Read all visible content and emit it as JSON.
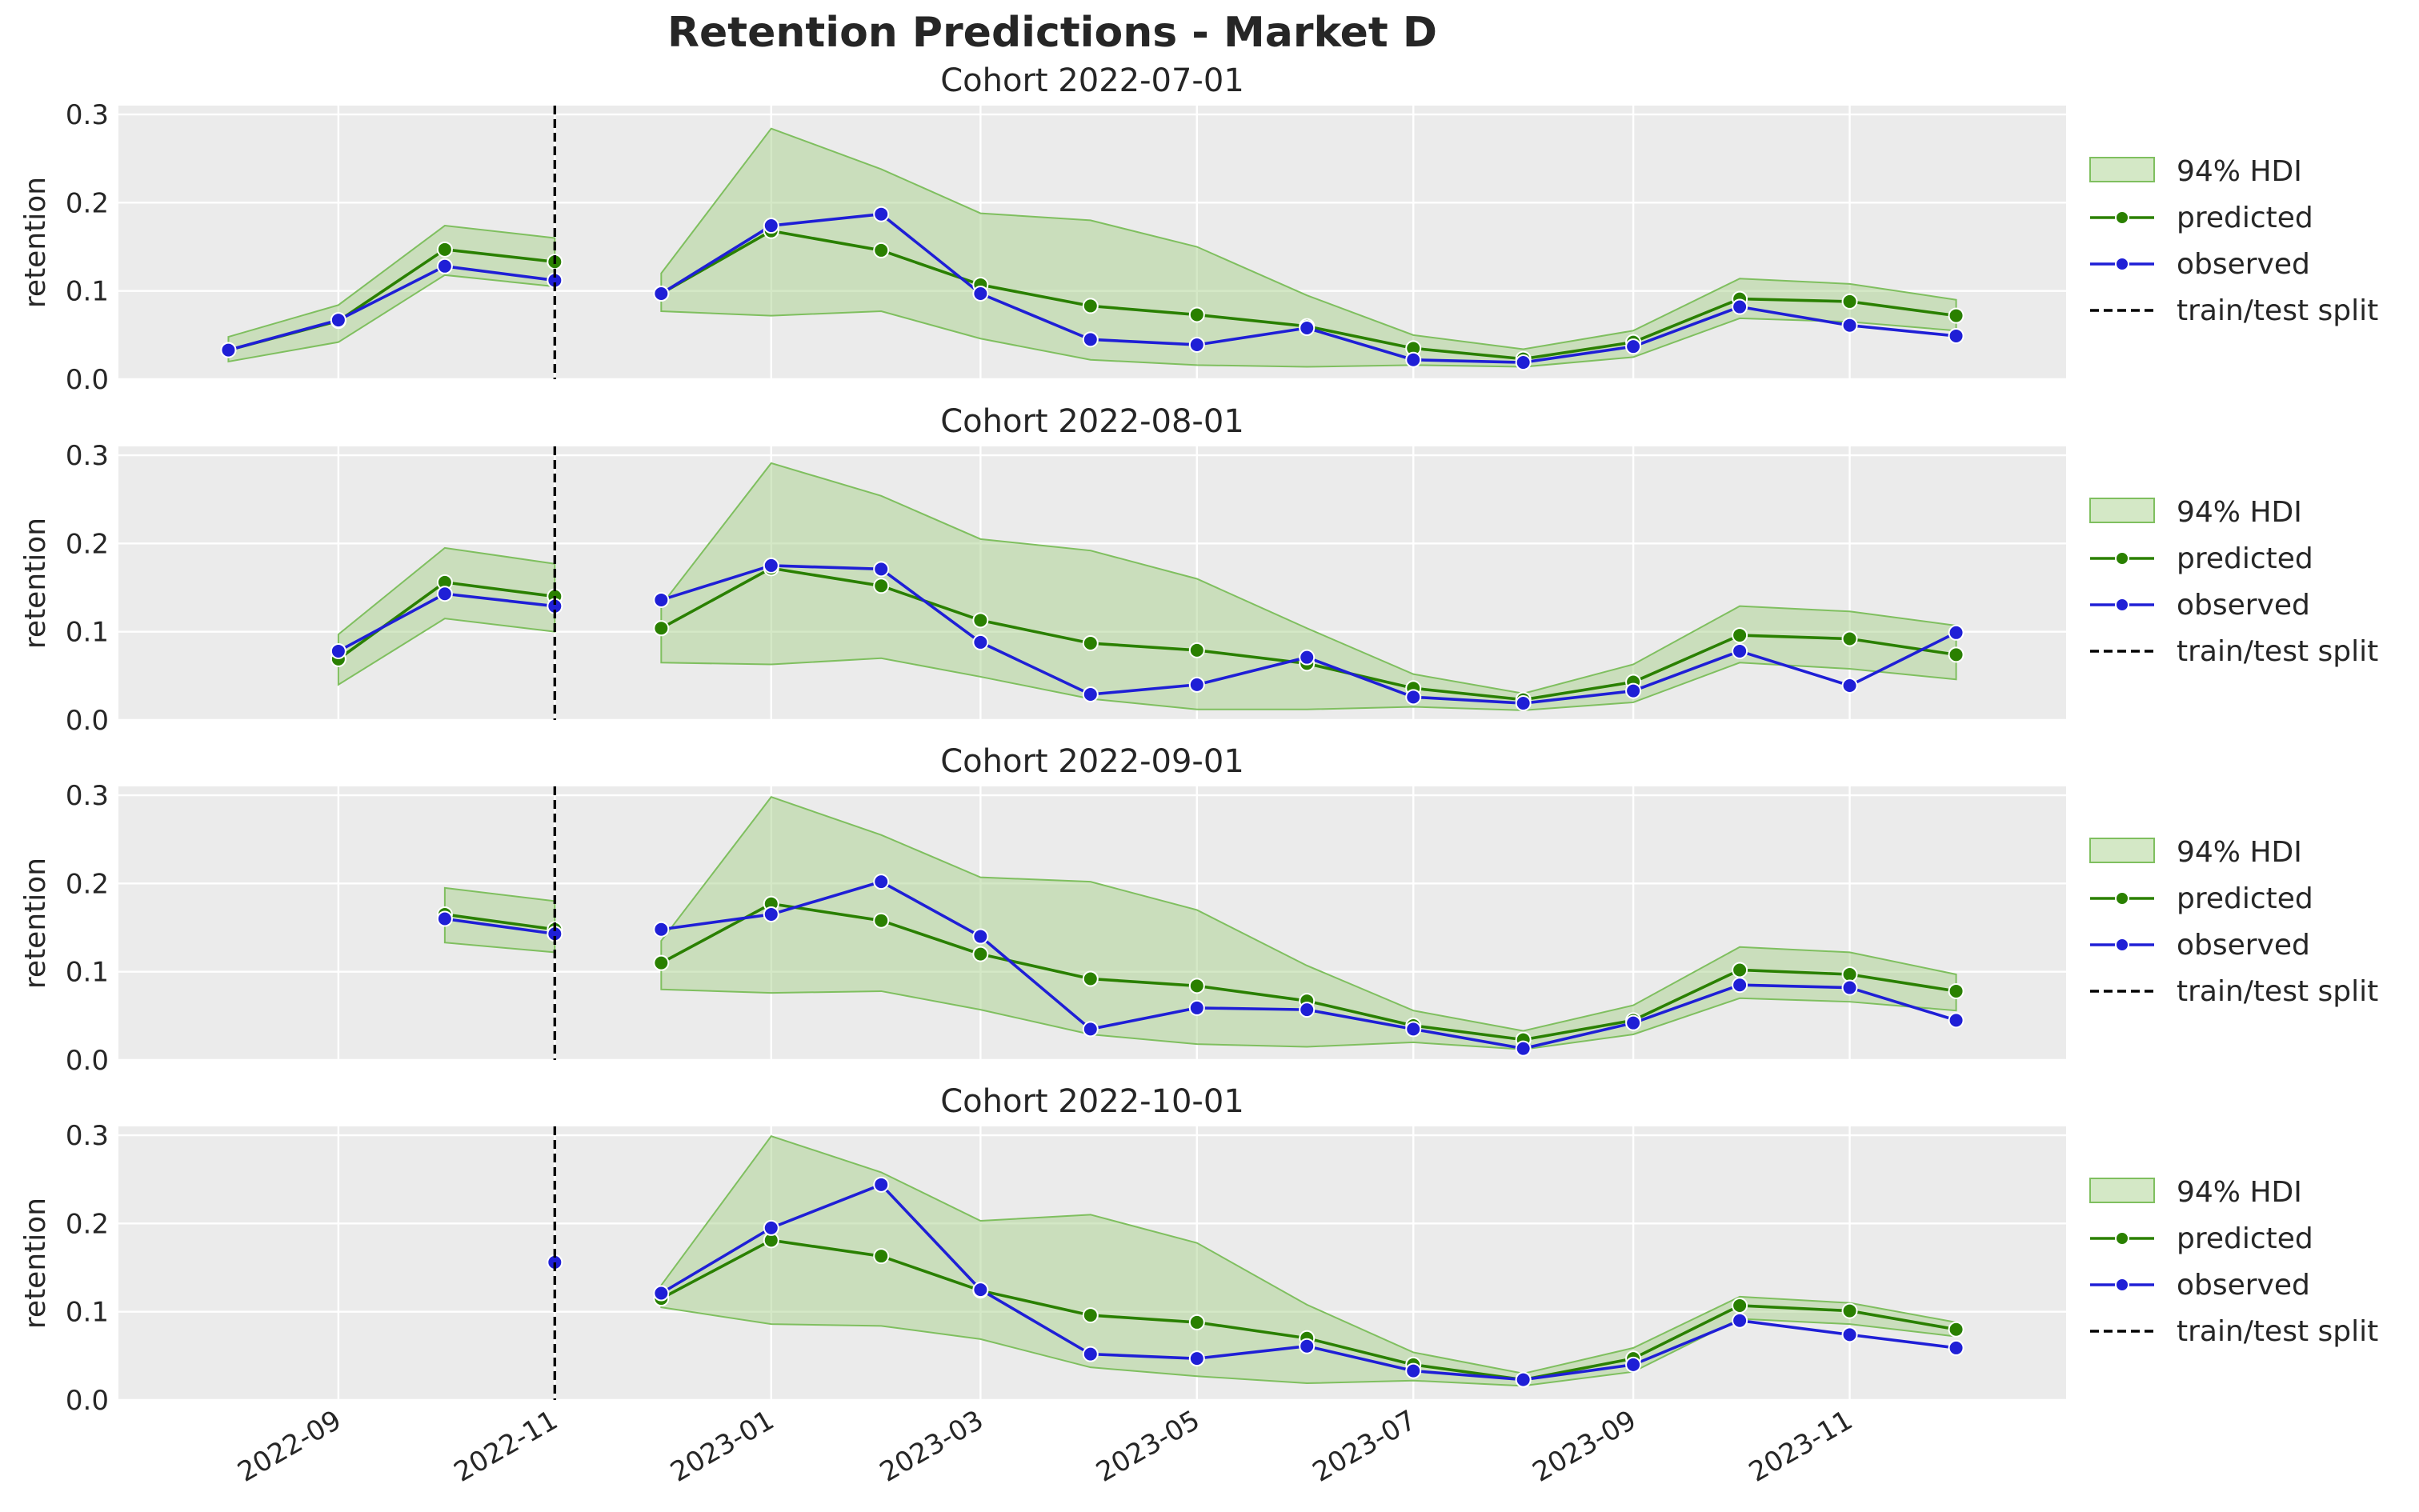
{
  "title": "Retention Predictions - Market D",
  "colors": {
    "predicted": "#2a8000",
    "observed": "#1f1fd6",
    "hdi_fill": "#a9d18e",
    "hdi_edge": "#7fbf5f",
    "panel_bg": "#ebebeb",
    "grid": "#ffffff",
    "split": "#000000"
  },
  "legend": {
    "hdi": "94% HDI",
    "predicted": "predicted",
    "observed": "observed",
    "split": "train/test split"
  },
  "chart_data": [
    {
      "type": "line",
      "title": "Cohort 2022-07-01",
      "ylabel": "retention",
      "ylim": [
        0.0,
        0.31
      ],
      "y_ticks": [
        0.0,
        0.1,
        0.2,
        0.3
      ],
      "x_ticks": [
        "2022-09",
        "2022-11",
        "2023-01",
        "2023-03",
        "2023-05",
        "2023-07",
        "2023-09",
        "2023-11"
      ],
      "split_date": "2022-11-01",
      "train": {
        "x": [
          "2022-08-01",
          "2022-09-01",
          "2022-10-01",
          "2022-11-01"
        ],
        "predicted": [
          0.033,
          0.066,
          0.147,
          0.133
        ],
        "observed": [
          0.033,
          0.067,
          0.128,
          0.112
        ],
        "hdi_low": [
          0.02,
          0.042,
          0.118,
          0.105
        ],
        "hdi_high": [
          0.048,
          0.084,
          0.174,
          0.16
        ]
      },
      "test": {
        "x": [
          "2022-12-01",
          "2023-01-01",
          "2023-02-01",
          "2023-03-01",
          "2023-04-01",
          "2023-05-01",
          "2023-06-01",
          "2023-07-01",
          "2023-08-01",
          "2023-09-01",
          "2023-10-01",
          "2023-11-01",
          "2023-12-01"
        ],
        "predicted": [
          0.097,
          0.168,
          0.146,
          0.107,
          0.083,
          0.073,
          0.06,
          0.035,
          0.023,
          0.042,
          0.091,
          0.088,
          0.072
        ],
        "observed": [
          0.097,
          0.174,
          0.187,
          0.097,
          0.045,
          0.039,
          0.058,
          0.022,
          0.019,
          0.037,
          0.082,
          0.061,
          0.049
        ],
        "hdi_low": [
          0.077,
          0.072,
          0.077,
          0.046,
          0.022,
          0.016,
          0.014,
          0.016,
          0.014,
          0.025,
          0.069,
          0.065,
          0.055
        ],
        "hdi_high": [
          0.12,
          0.284,
          0.238,
          0.188,
          0.18,
          0.15,
          0.095,
          0.05,
          0.034,
          0.055,
          0.114,
          0.108,
          0.09
        ]
      }
    },
    {
      "type": "line",
      "title": "Cohort 2022-08-01",
      "ylabel": "retention",
      "ylim": [
        0.0,
        0.31
      ],
      "y_ticks": [
        0.0,
        0.1,
        0.2,
        0.3
      ],
      "x_ticks": [
        "2022-09",
        "2022-11",
        "2023-01",
        "2023-03",
        "2023-05",
        "2023-07",
        "2023-09",
        "2023-11"
      ],
      "split_date": "2022-11-01",
      "train": {
        "x": [
          "2022-09-01",
          "2022-10-01",
          "2022-11-01"
        ],
        "predicted": [
          0.069,
          0.156,
          0.14
        ],
        "observed": [
          0.078,
          0.143,
          0.129
        ],
        "hdi_low": [
          0.04,
          0.115,
          0.1
        ],
        "hdi_high": [
          0.097,
          0.195,
          0.177
        ]
      },
      "test": {
        "x": [
          "2022-12-01",
          "2023-01-01",
          "2023-02-01",
          "2023-03-01",
          "2023-04-01",
          "2023-05-01",
          "2023-06-01",
          "2023-07-01",
          "2023-08-01",
          "2023-09-01",
          "2023-10-01",
          "2023-11-01",
          "2023-12-01"
        ],
        "predicted": [
          0.104,
          0.172,
          0.152,
          0.113,
          0.087,
          0.079,
          0.064,
          0.036,
          0.023,
          0.043,
          0.096,
          0.092,
          0.074
        ],
        "observed": [
          0.136,
          0.175,
          0.171,
          0.088,
          0.029,
          0.04,
          0.071,
          0.026,
          0.019,
          0.033,
          0.078,
          0.039,
          0.099
        ],
        "hdi_low": [
          0.065,
          0.063,
          0.07,
          0.049,
          0.024,
          0.012,
          0.012,
          0.015,
          0.011,
          0.02,
          0.065,
          0.058,
          0.046
        ],
        "hdi_high": [
          0.13,
          0.291,
          0.254,
          0.205,
          0.192,
          0.16,
          0.104,
          0.052,
          0.03,
          0.063,
          0.129,
          0.123,
          0.107
        ]
      }
    },
    {
      "type": "line",
      "title": "Cohort 2022-09-01",
      "ylabel": "retention",
      "ylim": [
        0.0,
        0.31
      ],
      "y_ticks": [
        0.0,
        0.1,
        0.2,
        0.3
      ],
      "x_ticks": [
        "2022-09",
        "2022-11",
        "2023-01",
        "2023-03",
        "2023-05",
        "2023-07",
        "2023-09",
        "2023-11"
      ],
      "split_date": "2022-11-01",
      "train": {
        "x": [
          "2022-10-01",
          "2022-11-01"
        ],
        "predicted": [
          0.165,
          0.148
        ],
        "observed": [
          0.16,
          0.143
        ],
        "hdi_low": [
          0.133,
          0.122
        ],
        "hdi_high": [
          0.195,
          0.18
        ]
      },
      "test": {
        "x": [
          "2022-12-01",
          "2023-01-01",
          "2023-02-01",
          "2023-03-01",
          "2023-04-01",
          "2023-05-01",
          "2023-06-01",
          "2023-07-01",
          "2023-08-01",
          "2023-09-01",
          "2023-10-01",
          "2023-11-01",
          "2023-12-01"
        ],
        "predicted": [
          0.11,
          0.177,
          0.158,
          0.12,
          0.092,
          0.084,
          0.067,
          0.039,
          0.023,
          0.045,
          0.102,
          0.097,
          0.078
        ],
        "observed": [
          0.148,
          0.165,
          0.202,
          0.14,
          0.035,
          0.059,
          0.057,
          0.035,
          0.013,
          0.042,
          0.085,
          0.082,
          0.045
        ],
        "hdi_low": [
          0.08,
          0.076,
          0.078,
          0.057,
          0.029,
          0.018,
          0.015,
          0.02,
          0.012,
          0.029,
          0.07,
          0.066,
          0.056
        ],
        "hdi_high": [
          0.135,
          0.298,
          0.255,
          0.207,
          0.202,
          0.17,
          0.107,
          0.056,
          0.033,
          0.062,
          0.128,
          0.122,
          0.097
        ]
      }
    },
    {
      "type": "line",
      "title": "Cohort 2022-10-01",
      "ylabel": "retention",
      "ylim": [
        0.0,
        0.31
      ],
      "y_ticks": [
        0.0,
        0.1,
        0.2,
        0.3
      ],
      "x_ticks": [
        "2022-09",
        "2022-11",
        "2023-01",
        "2023-03",
        "2023-05",
        "2023-07",
        "2023-09",
        "2023-11"
      ],
      "split_date": "2022-11-01",
      "train": {
        "x": [
          "2022-11-01"
        ],
        "predicted": [
          null
        ],
        "observed": [
          0.156
        ],
        "hdi_low": [
          null
        ],
        "hdi_high": [
          null
        ]
      },
      "test": {
        "x": [
          "2022-12-01",
          "2023-01-01",
          "2023-02-01",
          "2023-03-01",
          "2023-04-01",
          "2023-05-01",
          "2023-06-01",
          "2023-07-01",
          "2023-08-01",
          "2023-09-01",
          "2023-10-01",
          "2023-11-01",
          "2023-12-01"
        ],
        "predicted": [
          0.115,
          0.181,
          0.163,
          0.124,
          0.096,
          0.088,
          0.07,
          0.04,
          0.023,
          0.047,
          0.107,
          0.101,
          0.08
        ],
        "observed": [
          0.121,
          0.195,
          0.244,
          0.125,
          0.052,
          0.047,
          0.061,
          0.033,
          0.023,
          0.04,
          0.09,
          0.074,
          0.059
        ],
        "hdi_low": [
          0.105,
          0.086,
          0.084,
          0.069,
          0.037,
          0.027,
          0.019,
          0.022,
          0.016,
          0.032,
          0.092,
          0.086,
          0.072
        ],
        "hdi_high": [
          0.13,
          0.299,
          0.258,
          0.203,
          0.21,
          0.178,
          0.108,
          0.054,
          0.03,
          0.059,
          0.117,
          0.11,
          0.088
        ]
      }
    }
  ]
}
